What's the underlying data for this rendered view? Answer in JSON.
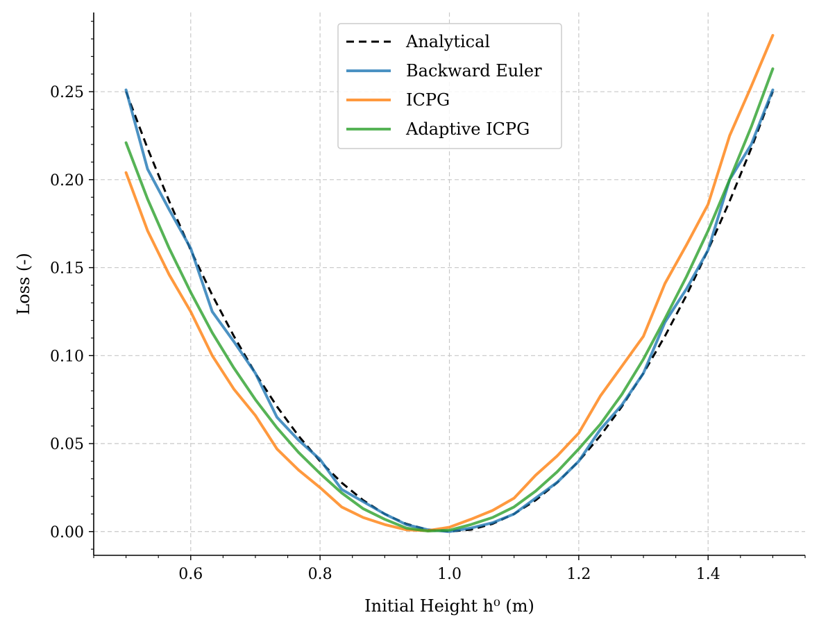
{
  "chart_data": {
    "type": "line",
    "xlabel": "Initial Height h⁰ (m)",
    "ylabel": "Loss (-)",
    "xlim": [
      0.45,
      1.55
    ],
    "ylim": [
      -0.0135,
      0.295
    ],
    "xticks": [
      0.6,
      0.8,
      1.0,
      1.2,
      1.4
    ],
    "xtick_labels": [
      "0.6",
      "0.8",
      "1.0",
      "1.2",
      "1.4"
    ],
    "yticks": [
      0.0,
      0.05,
      0.1,
      0.15,
      0.2,
      0.25
    ],
    "ytick_labels": [
      "0.00",
      "0.05",
      "0.10",
      "0.15",
      "0.20",
      "0.25"
    ],
    "grid": true,
    "legend_position": "top-center",
    "series": [
      {
        "name": "Analytical",
        "color": "#000000",
        "style": "dashed",
        "x": [
          0.5,
          0.5333,
          0.5667,
          0.6,
          0.6333,
          0.6667,
          0.7,
          0.7333,
          0.7667,
          0.8,
          0.8333,
          0.8667,
          0.9,
          0.9333,
          0.9667,
          1.0,
          1.0333,
          1.0667,
          1.1,
          1.1333,
          1.1667,
          1.2,
          1.2333,
          1.2667,
          1.3,
          1.3333,
          1.3667,
          1.4,
          1.4333,
          1.4667,
          1.5
        ],
        "y": [
          0.25,
          0.2178,
          0.1878,
          0.16,
          0.1344,
          0.1111,
          0.09,
          0.0711,
          0.0544,
          0.04,
          0.0278,
          0.0178,
          0.01,
          0.0044,
          0.0011,
          0.0,
          0.0011,
          0.0044,
          0.01,
          0.0178,
          0.0278,
          0.04,
          0.0544,
          0.0711,
          0.09,
          0.1111,
          0.1344,
          0.16,
          0.1878,
          0.2178,
          0.25
        ]
      },
      {
        "name": "Backward Euler",
        "color": "#1f77b4",
        "style": "solid",
        "x": [
          0.5,
          0.5333,
          0.5667,
          0.6,
          0.6333,
          0.6667,
          0.7,
          0.7333,
          0.7667,
          0.8,
          0.8333,
          0.8667,
          0.9,
          0.9333,
          0.9667,
          1.0,
          1.0333,
          1.0667,
          1.1,
          1.1333,
          1.1667,
          1.2,
          1.2333,
          1.2667,
          1.3,
          1.3333,
          1.3667,
          1.4,
          1.4333,
          1.4667,
          1.5
        ],
        "y": [
          0.251,
          0.206,
          0.183,
          0.161,
          0.125,
          0.108,
          0.09,
          0.065,
          0.052,
          0.041,
          0.024,
          0.017,
          0.01,
          0.004,
          0.001,
          0.0,
          0.002,
          0.005,
          0.01,
          0.019,
          0.028,
          0.04,
          0.058,
          0.072,
          0.09,
          0.119,
          0.138,
          0.16,
          0.2,
          0.22,
          0.251
        ]
      },
      {
        "name": "ICPG",
        "color": "#ff7f0e",
        "style": "solid",
        "x": [
          0.5,
          0.5333,
          0.5667,
          0.6,
          0.6333,
          0.6667,
          0.7,
          0.7333,
          0.7667,
          0.8,
          0.8333,
          0.8667,
          0.9,
          0.9333,
          0.9667,
          1.0,
          1.0333,
          1.0667,
          1.1,
          1.1333,
          1.1667,
          1.2,
          1.2333,
          1.2667,
          1.3,
          1.3333,
          1.3667,
          1.4,
          1.4333,
          1.4667,
          1.5
        ],
        "y": [
          0.204,
          0.171,
          0.146,
          0.125,
          0.1,
          0.081,
          0.066,
          0.047,
          0.035,
          0.025,
          0.014,
          0.008,
          0.004,
          0.001,
          0.0005,
          0.0025,
          0.007,
          0.012,
          0.019,
          0.032,
          0.043,
          0.056,
          0.077,
          0.094,
          0.111,
          0.141,
          0.163,
          0.186,
          0.225,
          0.253,
          0.282
        ]
      },
      {
        "name": "Adaptive ICPG",
        "color": "#2ca02c",
        "style": "solid",
        "x": [
          0.5,
          0.5333,
          0.5667,
          0.6,
          0.6333,
          0.6667,
          0.7,
          0.7333,
          0.7667,
          0.8,
          0.8333,
          0.8667,
          0.9,
          0.9333,
          0.9667,
          1.0,
          1.0333,
          1.0667,
          1.1,
          1.1333,
          1.1667,
          1.2,
          1.2333,
          1.2667,
          1.3,
          1.3333,
          1.3667,
          1.4,
          1.4333,
          1.4667,
          1.5
        ],
        "y": [
          0.221,
          0.189,
          0.161,
          0.136,
          0.113,
          0.093,
          0.075,
          0.059,
          0.045,
          0.033,
          0.022,
          0.013,
          0.007,
          0.002,
          0.0003,
          0.0008,
          0.004,
          0.008,
          0.014,
          0.023,
          0.034,
          0.047,
          0.061,
          0.078,
          0.098,
          0.121,
          0.145,
          0.171,
          0.2,
          0.23,
          0.263
        ]
      }
    ]
  }
}
